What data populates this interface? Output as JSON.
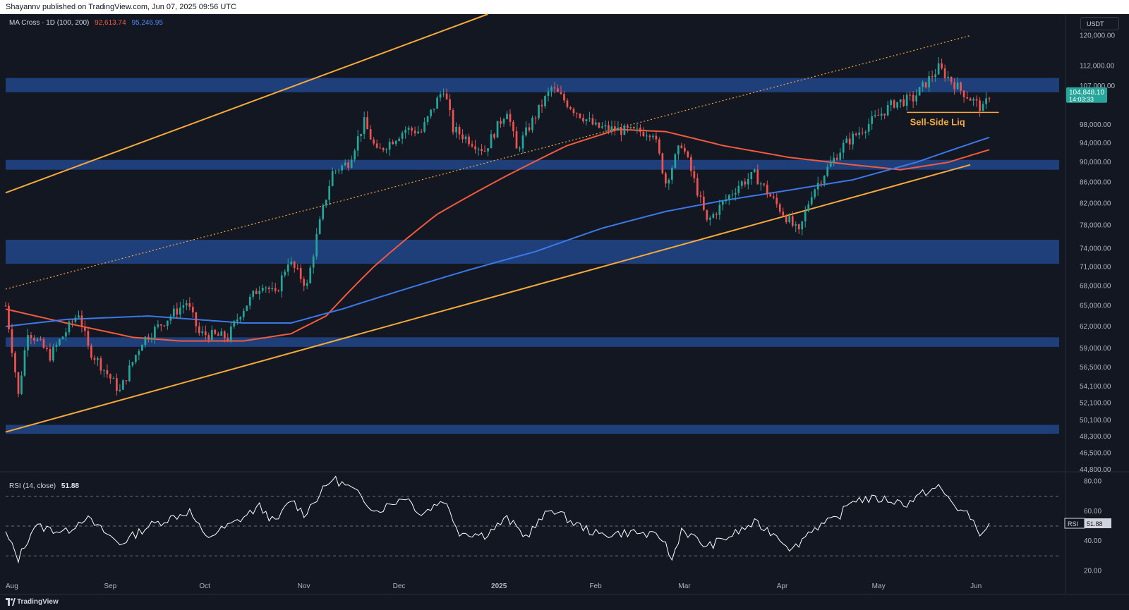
{
  "header": {
    "publish_line": "Shayannv published on TradingView.com, Jun 07, 2025 09:56 UTC"
  },
  "indicator_legend": {
    "name": "MA Cross · 1D (100, 200)",
    "ma100_value": "92,613.74",
    "ma200_value": "95,246.95"
  },
  "rsi_legend": {
    "name": "RSI (14, close)",
    "value": "51.88"
  },
  "currency_button": {
    "label": "USDT"
  },
  "price_badge": {
    "price": "104,848.10",
    "countdown": "14:03:33"
  },
  "rsi_badge": {
    "label": "RSI",
    "value": "51.88"
  },
  "annotation": {
    "text": "Sell-Side Liq"
  },
  "footer": {
    "brand": "TradingView"
  },
  "colors": {
    "background": "#131722",
    "zone": "#1f3f7a",
    "channel": "#f6a93b",
    "ma100": "#f05a3e",
    "ma200": "#3b78e7",
    "candle_up": "#26a69a",
    "candle_down": "#ef5350",
    "rsi_line": "#ffffff"
  },
  "chart_data": [
    {
      "type": "candlestick",
      "title": "",
      "symbol": "BTC/USDT",
      "interval": "1D",
      "yscale": "log",
      "ylim": [
        44800,
        126000
      ],
      "xlim": [
        "2024-08-01",
        "2025-06-29"
      ],
      "x_ticks": [
        {
          "label": "Aug",
          "date": "2024-08-01"
        },
        {
          "label": "Sep",
          "date": "2024-09-01"
        },
        {
          "label": "Oct",
          "date": "2024-10-01"
        },
        {
          "label": "Nov",
          "date": "2024-11-01"
        },
        {
          "label": "Dec",
          "date": "2024-12-01"
        },
        {
          "label": "2025",
          "date": "2025-01-01"
        },
        {
          "label": "Feb",
          "date": "2025-02-01"
        },
        {
          "label": "Mar",
          "date": "2025-03-01"
        },
        {
          "label": "Apr",
          "date": "2025-04-01"
        },
        {
          "label": "May",
          "date": "2025-05-01"
        },
        {
          "label": "Jun",
          "date": "2025-06-01"
        }
      ],
      "y_ticks": [
        {
          "label": "120,000.00",
          "value": 120000
        },
        {
          "label": "112,000.00",
          "value": 112000
        },
        {
          "label": "107,000.00",
          "value": 107000
        },
        {
          "label": "98,000.00",
          "value": 98000
        },
        {
          "label": "94,000.00",
          "value": 94000
        },
        {
          "label": "90,000.00",
          "value": 90000
        },
        {
          "label": "86,000.00",
          "value": 86000
        },
        {
          "label": "82,000.00",
          "value": 82000
        },
        {
          "label": "78,000.00",
          "value": 78000
        },
        {
          "label": "74,000.00",
          "value": 74000
        },
        {
          "label": "71,000.00",
          "value": 71000
        },
        {
          "label": "68,000.00",
          "value": 68000
        },
        {
          "label": "65,000.00",
          "value": 65000
        },
        {
          "label": "62,000.00",
          "value": 62000
        },
        {
          "label": "59,000.00",
          "value": 59000
        },
        {
          "label": "56,500.00",
          "value": 56500
        },
        {
          "label": "54,100.00",
          "value": 54100
        },
        {
          "label": "52,100.00",
          "value": 52100
        },
        {
          "label": "50,100.00",
          "value": 50100
        },
        {
          "label": "48,300.00",
          "value": 48300
        },
        {
          "label": "46,500.00",
          "value": 46500
        },
        {
          "label": "44,800.00",
          "value": 44800
        }
      ],
      "last_price": 104848.1,
      "price_path": [
        [
          "2024-08-01",
          65000
        ],
        [
          "2024-08-05",
          53000
        ],
        [
          "2024-08-08",
          61500
        ],
        [
          "2024-08-15",
          58000
        ],
        [
          "2024-08-24",
          64000
        ],
        [
          "2024-08-27",
          59000
        ],
        [
          "2024-09-06",
          53500
        ],
        [
          "2024-09-13",
          60000
        ],
        [
          "2024-09-27",
          65500
        ],
        [
          "2024-10-01",
          61000
        ],
        [
          "2024-10-10",
          60500
        ],
        [
          "2024-10-14",
          64000
        ],
        [
          "2024-10-21",
          68500
        ],
        [
          "2024-10-25",
          66500
        ],
        [
          "2024-10-29",
          72000
        ],
        [
          "2024-11-04",
          68000
        ],
        [
          "2024-11-07",
          76000
        ],
        [
          "2024-11-12",
          88000
        ],
        [
          "2024-11-17",
          90000
        ],
        [
          "2024-11-22",
          98500
        ],
        [
          "2024-11-26",
          92000
        ],
        [
          "2024-12-05",
          97000
        ],
        [
          "2024-12-10",
          96500
        ],
        [
          "2024-12-17",
          106500
        ],
        [
          "2024-12-20",
          97000
        ],
        [
          "2024-12-30",
          92500
        ],
        [
          "2025-01-06",
          101500
        ],
        [
          "2025-01-09",
          92500
        ],
        [
          "2025-01-20",
          106500
        ],
        [
          "2025-01-27",
          101500
        ],
        [
          "2025-02-03",
          97500
        ],
        [
          "2025-02-14",
          96500
        ],
        [
          "2025-02-21",
          96500
        ],
        [
          "2025-02-25",
          86000
        ],
        [
          "2025-03-02",
          94000
        ],
        [
          "2025-03-10",
          78500
        ],
        [
          "2025-03-20",
          85500
        ],
        [
          "2025-03-25",
          87500
        ],
        [
          "2025-03-31",
          82500
        ],
        [
          "2025-04-08",
          76500
        ],
        [
          "2025-04-12",
          84000
        ],
        [
          "2025-04-22",
          93500
        ],
        [
          "2025-05-08",
          103000
        ],
        [
          "2025-05-14",
          104000
        ],
        [
          "2025-05-22",
          111500
        ],
        [
          "2025-05-29",
          106000
        ],
        [
          "2025-06-05",
          101500
        ],
        [
          "2025-06-07",
          104848
        ]
      ],
      "ma100_series": [
        [
          "2024-08-01",
          64500
        ],
        [
          "2024-08-20",
          62500
        ],
        [
          "2024-09-10",
          60500
        ],
        [
          "2024-09-25",
          60000
        ],
        [
          "2024-10-15",
          60000
        ],
        [
          "2024-10-30",
          61000
        ],
        [
          "2024-11-10",
          63500
        ],
        [
          "2024-11-25",
          71000
        ],
        [
          "2024-12-15",
          80000
        ],
        [
          "2025-01-05",
          87000
        ],
        [
          "2025-01-25",
          93500
        ],
        [
          "2025-02-10",
          97000
        ],
        [
          "2025-02-25",
          96500
        ],
        [
          "2025-03-15",
          93500
        ],
        [
          "2025-04-05",
          91000
        ],
        [
          "2025-04-25",
          89500
        ],
        [
          "2025-05-10",
          88500
        ],
        [
          "2025-05-25",
          90000
        ],
        [
          "2025-06-07",
          92613.74
        ]
      ],
      "ma200_series": [
        [
          "2024-08-01",
          62000
        ],
        [
          "2024-08-20",
          63000
        ],
        [
          "2024-09-15",
          63500
        ],
        [
          "2024-10-15",
          62500
        ],
        [
          "2024-10-30",
          62500
        ],
        [
          "2024-11-15",
          64500
        ],
        [
          "2024-12-05",
          67500
        ],
        [
          "2024-12-25",
          70500
        ],
        [
          "2025-01-15",
          73500
        ],
        [
          "2025-02-05",
          77500
        ],
        [
          "2025-02-25",
          80500
        ],
        [
          "2025-03-15",
          82500
        ],
        [
          "2025-04-05",
          84500
        ],
        [
          "2025-04-25",
          86500
        ],
        [
          "2025-05-15",
          90000
        ],
        [
          "2025-06-07",
          95246.95
        ]
      ],
      "supply_demand_zones": [
        {
          "from": 105500,
          "to": 109000
        },
        {
          "from": 88500,
          "to": 90500
        },
        {
          "from": 71500,
          "to": 75500
        },
        {
          "from": 59200,
          "to": 60500
        },
        {
          "from": 48600,
          "to": 49600
        }
      ],
      "channel_lines": [
        {
          "style": "solid",
          "start": [
            "2024-08-01",
            84000
          ],
          "end": [
            "2024-12-31",
            126000
          ]
        },
        {
          "style": "dotted",
          "start": [
            "2024-08-01",
            67500
          ],
          "end": [
            "2025-06-01",
            120000
          ]
        },
        {
          "style": "solid",
          "start": [
            "2024-08-01",
            48800
          ],
          "end": [
            "2025-06-01",
            89500
          ]
        }
      ],
      "sell_side_liquidity_level": 100800,
      "annotations": [
        "Sell-Side Liq"
      ]
    },
    {
      "type": "line",
      "title": "RSI (14, close)",
      "ylim": [
        15,
        85
      ],
      "y_ticks": [
        80,
        60,
        40,
        20
      ],
      "bands": [
        30,
        50,
        70
      ],
      "last_value": 51.88,
      "series": [
        {
          "name": "RSI",
          "points": [
            [
              "2024-08-01",
              45
            ],
            [
              "2024-08-05",
              28
            ],
            [
              "2024-08-10",
              50
            ],
            [
              "2024-08-20",
              46
            ],
            [
              "2024-08-26",
              56
            ],
            [
              "2024-09-06",
              38
            ],
            [
              "2024-09-15",
              50
            ],
            [
              "2024-09-28",
              60
            ],
            [
              "2024-10-03",
              42
            ],
            [
              "2024-10-12",
              52
            ],
            [
              "2024-10-20",
              63
            ],
            [
              "2024-10-25",
              52
            ],
            [
              "2024-10-30",
              68
            ],
            [
              "2024-11-03",
              58
            ],
            [
              "2024-11-12",
              82
            ],
            [
              "2024-11-18",
              75
            ],
            [
              "2024-11-26",
              60
            ],
            [
              "2024-12-05",
              70
            ],
            [
              "2024-12-10",
              58
            ],
            [
              "2024-12-17",
              68
            ],
            [
              "2024-12-22",
              46
            ],
            [
              "2024-12-30",
              44
            ],
            [
              "2025-01-06",
              55
            ],
            [
              "2025-01-12",
              43
            ],
            [
              "2025-01-20",
              62
            ],
            [
              "2025-01-27",
              52
            ],
            [
              "2025-02-04",
              44
            ],
            [
              "2025-02-15",
              46
            ],
            [
              "2025-02-24",
              42
            ],
            [
              "2025-02-27",
              27
            ],
            [
              "2025-03-02",
              48
            ],
            [
              "2025-03-10",
              36
            ],
            [
              "2025-03-18",
              44
            ],
            [
              "2025-03-25",
              52
            ],
            [
              "2025-04-01",
              44
            ],
            [
              "2025-04-06",
              34
            ],
            [
              "2025-04-12",
              48
            ],
            [
              "2025-04-20",
              55
            ],
            [
              "2025-04-25",
              68
            ],
            [
              "2025-05-05",
              68
            ],
            [
              "2025-05-12",
              65
            ],
            [
              "2025-05-18",
              73
            ],
            [
              "2025-05-22",
              76
            ],
            [
              "2025-05-28",
              62
            ],
            [
              "2025-06-01",
              56
            ],
            [
              "2025-06-05",
              43
            ],
            [
              "2025-06-07",
              51.88
            ]
          ]
        }
      ]
    }
  ]
}
